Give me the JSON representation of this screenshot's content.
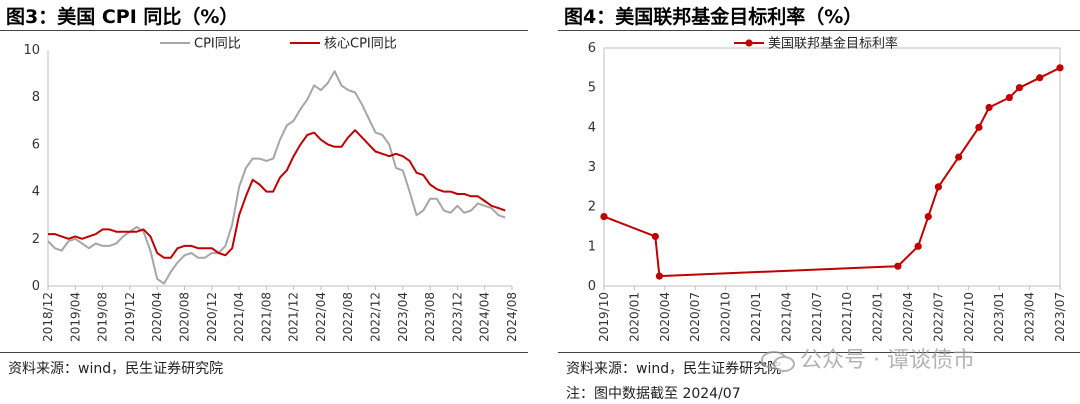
{
  "left": {
    "title": "图3：美国 CPI 同比（%）",
    "source": "资料来源：wind，民生证券研究院"
  },
  "right": {
    "title": "图4：美国联邦基金目标利率（%）",
    "source": "资料来源：wind，民生证券研究院",
    "note": "注：图中数据截至 2024/07"
  },
  "watermark": "公众号 · 谭谈债市",
  "chart_data": [
    {
      "type": "line",
      "title": "",
      "ylim": [
        0,
        10
      ],
      "yticks": [
        0,
        2,
        4,
        6,
        8,
        10
      ],
      "x_range": [
        "2018-12",
        "2024-08"
      ],
      "x_tick_labels": [
        "2018/12",
        "2019/04",
        "2019/08",
        "2019/12",
        "2020/04",
        "2020/08",
        "2020/12",
        "2021/04",
        "2021/08",
        "2021/12",
        "2022/04",
        "2022/08",
        "2022/12",
        "2023/04",
        "2023/08",
        "2023/12",
        "2024/04",
        "2024/08"
      ],
      "legend_position": "top",
      "grid": false,
      "colors": {
        "CPI同比": "#a6a6a6",
        "核心CPI同比": "#c00000"
      },
      "series": [
        {
          "name": "CPI同比",
          "x": [
            "2018-12",
            "2019-01",
            "2019-02",
            "2019-03",
            "2019-04",
            "2019-05",
            "2019-06",
            "2019-07",
            "2019-08",
            "2019-09",
            "2019-10",
            "2019-11",
            "2019-12",
            "2020-01",
            "2020-02",
            "2020-03",
            "2020-04",
            "2020-05",
            "2020-06",
            "2020-07",
            "2020-08",
            "2020-09",
            "2020-10",
            "2020-11",
            "2020-12",
            "2021-01",
            "2021-02",
            "2021-03",
            "2021-04",
            "2021-05",
            "2021-06",
            "2021-07",
            "2021-08",
            "2021-09",
            "2021-10",
            "2021-11",
            "2021-12",
            "2022-01",
            "2022-02",
            "2022-03",
            "2022-04",
            "2022-05",
            "2022-06",
            "2022-07",
            "2022-08",
            "2022-09",
            "2022-10",
            "2022-11",
            "2022-12",
            "2023-01",
            "2023-02",
            "2023-03",
            "2023-04",
            "2023-05",
            "2023-06",
            "2023-07",
            "2023-08",
            "2023-09",
            "2023-10",
            "2023-11",
            "2023-12",
            "2024-01",
            "2024-02",
            "2024-03",
            "2024-04",
            "2024-05",
            "2024-06",
            "2024-07"
          ],
          "values": [
            1.9,
            1.6,
            1.5,
            1.9,
            2.0,
            1.8,
            1.6,
            1.8,
            1.7,
            1.7,
            1.8,
            2.1,
            2.3,
            2.5,
            2.3,
            1.5,
            0.3,
            0.1,
            0.6,
            1.0,
            1.3,
            1.4,
            1.2,
            1.2,
            1.4,
            1.4,
            1.7,
            2.6,
            4.2,
            5.0,
            5.4,
            5.4,
            5.3,
            5.4,
            6.2,
            6.8,
            7.0,
            7.5,
            7.9,
            8.5,
            8.3,
            8.6,
            9.1,
            8.5,
            8.3,
            8.2,
            7.7,
            7.1,
            6.5,
            6.4,
            6.0,
            5.0,
            4.9,
            4.0,
            3.0,
            3.2,
            3.7,
            3.7,
            3.2,
            3.1,
            3.4,
            3.1,
            3.2,
            3.5,
            3.4,
            3.3,
            3.0,
            2.9
          ]
        },
        {
          "name": "核心CPI同比",
          "x": [
            "2018-12",
            "2019-01",
            "2019-02",
            "2019-03",
            "2019-04",
            "2019-05",
            "2019-06",
            "2019-07",
            "2019-08",
            "2019-09",
            "2019-10",
            "2019-11",
            "2019-12",
            "2020-01",
            "2020-02",
            "2020-03",
            "2020-04",
            "2020-05",
            "2020-06",
            "2020-07",
            "2020-08",
            "2020-09",
            "2020-10",
            "2020-11",
            "2020-12",
            "2021-01",
            "2021-02",
            "2021-03",
            "2021-04",
            "2021-05",
            "2021-06",
            "2021-07",
            "2021-08",
            "2021-09",
            "2021-10",
            "2021-11",
            "2021-12",
            "2022-01",
            "2022-02",
            "2022-03",
            "2022-04",
            "2022-05",
            "2022-06",
            "2022-07",
            "2022-08",
            "2022-09",
            "2022-10",
            "2022-11",
            "2022-12",
            "2023-01",
            "2023-02",
            "2023-03",
            "2023-04",
            "2023-05",
            "2023-06",
            "2023-07",
            "2023-08",
            "2023-09",
            "2023-10",
            "2023-11",
            "2023-12",
            "2024-01",
            "2024-02",
            "2024-03",
            "2024-04",
            "2024-05",
            "2024-06",
            "2024-07"
          ],
          "values": [
            2.2,
            2.2,
            2.1,
            2.0,
            2.1,
            2.0,
            2.1,
            2.2,
            2.4,
            2.4,
            2.3,
            2.3,
            2.3,
            2.3,
            2.4,
            2.1,
            1.4,
            1.2,
            1.2,
            1.6,
            1.7,
            1.7,
            1.6,
            1.6,
            1.6,
            1.4,
            1.3,
            1.6,
            3.0,
            3.8,
            4.5,
            4.3,
            4.0,
            4.0,
            4.6,
            4.9,
            5.5,
            6.0,
            6.4,
            6.5,
            6.2,
            6.0,
            5.9,
            5.9,
            6.3,
            6.6,
            6.3,
            6.0,
            5.7,
            5.6,
            5.5,
            5.6,
            5.5,
            5.3,
            4.8,
            4.7,
            4.3,
            4.1,
            4.0,
            4.0,
            3.9,
            3.9,
            3.8,
            3.8,
            3.6,
            3.4,
            3.3,
            3.2
          ]
        }
      ]
    },
    {
      "type": "line",
      "title": "",
      "ylim": [
        0,
        6
      ],
      "yticks": [
        0,
        1,
        2,
        3,
        4,
        5,
        6
      ],
      "x_range": [
        "2019-10",
        "2023-07"
      ],
      "x_tick_labels": [
        "2019/10",
        "2020/01",
        "2020/04",
        "2020/07",
        "2020/10",
        "2021/01",
        "2021/04",
        "2021/07",
        "2021/10",
        "2022/01",
        "2022/04",
        "2022/07",
        "2022/10",
        "2023/01",
        "2023/04",
        "2023/07"
      ],
      "legend_position": "top-left",
      "grid": false,
      "colors": {
        "美国联邦基金目标利率": "#c00000"
      },
      "series": [
        {
          "name": "美国联邦基金目标利率",
          "markers": true,
          "x": [
            "2019-10",
            "2020-03-03",
            "2020-03-15",
            "2022-03",
            "2022-05",
            "2022-06",
            "2022-07",
            "2022-09",
            "2022-11",
            "2022-12",
            "2023-02",
            "2023-03",
            "2023-05",
            "2023-07"
          ],
          "values": [
            1.75,
            1.25,
            0.25,
            0.5,
            1.0,
            1.75,
            2.5,
            3.25,
            4.0,
            4.5,
            4.75,
            5.0,
            5.25,
            5.5
          ]
        }
      ]
    }
  ]
}
